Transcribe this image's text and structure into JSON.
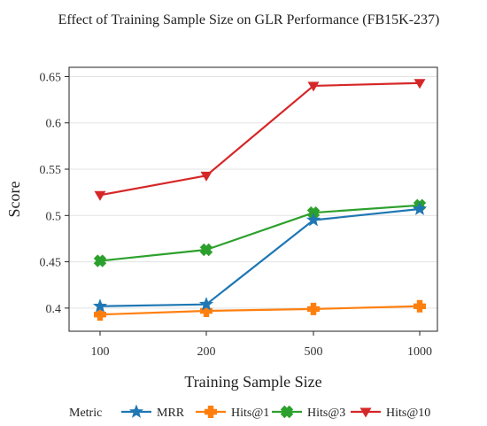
{
  "chart_data": {
    "type": "line",
    "title": "Effect of Training Sample Size on GLR Performance (FB15K-237)",
    "xlabel": "Training Sample Size",
    "ylabel": "Score",
    "categories": [
      "100",
      "200",
      "500",
      "1000"
    ],
    "ylim": [
      0.375,
      0.66
    ],
    "yticks": [
      0.4,
      0.45,
      0.5,
      0.55,
      0.6,
      0.65
    ],
    "ytick_labels": [
      "0.4",
      "0.45",
      "0.5",
      "0.55",
      "0.6",
      "0.65"
    ],
    "grid": true,
    "legend_title": "Metric",
    "legend_position": "bottom",
    "series": [
      {
        "name": "MRR",
        "values": [
          0.402,
          0.404,
          0.495,
          0.507
        ],
        "color": "#1f77b4",
        "marker": "star"
      },
      {
        "name": "Hits@1",
        "values": [
          0.393,
          0.397,
          0.399,
          0.402
        ],
        "color": "#ff7f0e",
        "marker": "plus"
      },
      {
        "name": "Hits@3",
        "values": [
          0.451,
          0.463,
          0.503,
          0.511
        ],
        "color": "#2ca02c",
        "marker": "x"
      },
      {
        "name": "Hits@10",
        "values": [
          0.522,
          0.543,
          0.64,
          0.643
        ],
        "color": "#d62728",
        "marker": "triangle-down"
      }
    ]
  }
}
